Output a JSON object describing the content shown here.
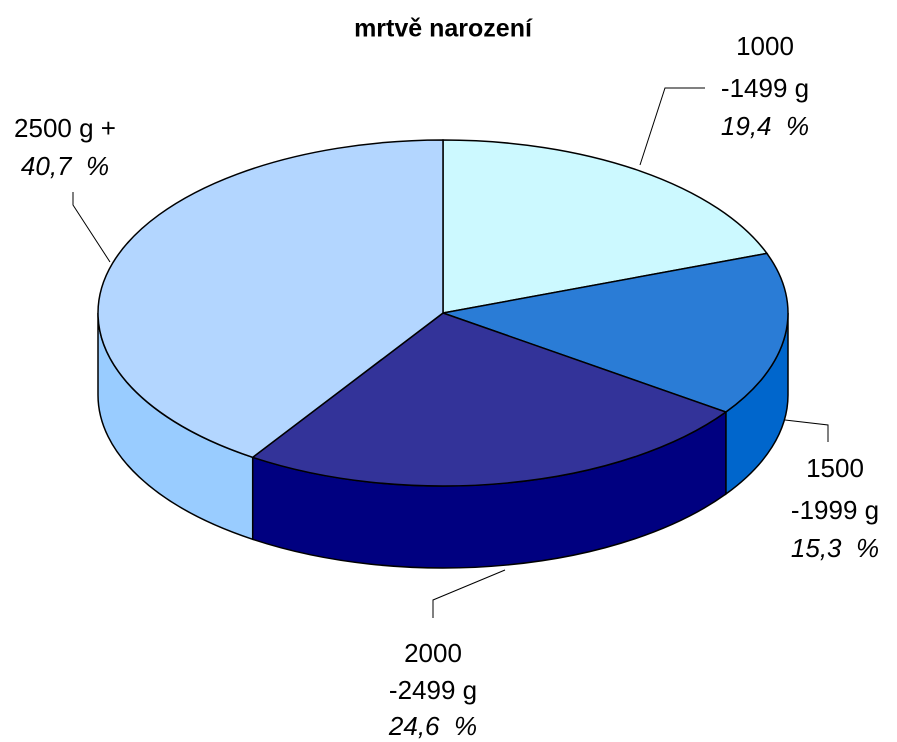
{
  "chart_data": {
    "type": "pie3d",
    "title": "mrtvě narození",
    "categories": [
      "1000\n-1499 g",
      "1500\n-1999 g",
      "2000\n-2499 g",
      "2500 g +"
    ],
    "values": [
      19.4,
      15.3,
      24.6,
      40.7
    ],
    "value_labels": [
      "19,4  %",
      "15,3  %",
      "24,6  %",
      "40,7  %"
    ],
    "colors": [
      "#ccf9ff",
      "#2a7cd6",
      "#333399",
      "#b3d6ff"
    ],
    "side_colors": [
      "#99e6ff",
      "#0066cc",
      "#000080",
      "#99ccff"
    ]
  }
}
